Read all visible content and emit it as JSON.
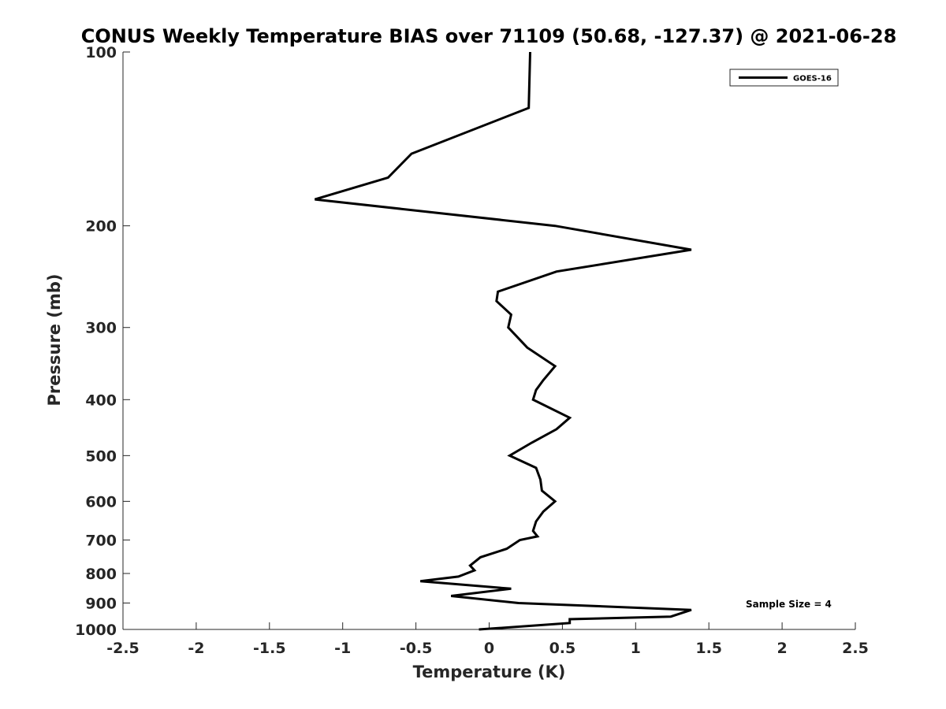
{
  "chart_data": {
    "type": "line",
    "title": "CONUS Weekly Temperature BIAS over 71109 (50.68, -127.37) @ 2021-06-28",
    "xlabel": "Temperature (K)",
    "ylabel": "Pressure (mb)",
    "xlim": [
      -2.5,
      2.5
    ],
    "ylim": [
      1000,
      100
    ],
    "y_scale": "log",
    "y_reversed": true,
    "grid": false,
    "legend_position": "top-right",
    "x_ticks": [
      -2.5,
      -2,
      -1.5,
      -1,
      -0.5,
      0,
      0.5,
      1,
      1.5,
      2,
      2.5
    ],
    "x_tick_labels": [
      "-2.5",
      "-2",
      "-1.5",
      "-1",
      "-0.5",
      "0",
      "0.5",
      "1",
      "1.5",
      "2",
      "2.5"
    ],
    "y_ticks": [
      100,
      200,
      300,
      400,
      500,
      600,
      700,
      800,
      900,
      1000
    ],
    "y_tick_labels": [
      "100",
      "200",
      "300",
      "400",
      "500",
      "600",
      "700",
      "800",
      "900",
      "1000"
    ],
    "series": [
      {
        "name": "GOES-16",
        "color": "#000000",
        "points": [
          {
            "x": 0.28,
            "y": 100
          },
          {
            "x": 0.27,
            "y": 125
          },
          {
            "x": -0.53,
            "y": 150
          },
          {
            "x": -0.69,
            "y": 165
          },
          {
            "x": -1.19,
            "y": 180
          },
          {
            "x": 0.45,
            "y": 200
          },
          {
            "x": 1.38,
            "y": 220
          },
          {
            "x": 0.46,
            "y": 240
          },
          {
            "x": 0.06,
            "y": 260
          },
          {
            "x": 0.05,
            "y": 270
          },
          {
            "x": 0.15,
            "y": 285
          },
          {
            "x": 0.13,
            "y": 300
          },
          {
            "x": 0.26,
            "y": 325
          },
          {
            "x": 0.45,
            "y": 350
          },
          {
            "x": 0.37,
            "y": 370
          },
          {
            "x": 0.32,
            "y": 385
          },
          {
            "x": 0.3,
            "y": 400
          },
          {
            "x": 0.55,
            "y": 430
          },
          {
            "x": 0.46,
            "y": 450
          },
          {
            "x": 0.29,
            "y": 475
          },
          {
            "x": 0.14,
            "y": 500
          },
          {
            "x": 0.32,
            "y": 525
          },
          {
            "x": 0.35,
            "y": 550
          },
          {
            "x": 0.36,
            "y": 575
          },
          {
            "x": 0.45,
            "y": 600
          },
          {
            "x": 0.37,
            "y": 625
          },
          {
            "x": 0.32,
            "y": 650
          },
          {
            "x": 0.3,
            "y": 675
          },
          {
            "x": 0.33,
            "y": 690
          },
          {
            "x": 0.21,
            "y": 700
          },
          {
            "x": 0.12,
            "y": 725
          },
          {
            "x": -0.06,
            "y": 750
          },
          {
            "x": -0.13,
            "y": 775
          },
          {
            "x": -0.1,
            "y": 790
          },
          {
            "x": -0.21,
            "y": 810
          },
          {
            "x": -0.47,
            "y": 825
          },
          {
            "x": 0.15,
            "y": 850
          },
          {
            "x": -0.26,
            "y": 875
          },
          {
            "x": 0.2,
            "y": 900
          },
          {
            "x": 1.38,
            "y": 925
          },
          {
            "x": 1.24,
            "y": 950
          },
          {
            "x": 0.55,
            "y": 960
          },
          {
            "x": 0.55,
            "y": 975
          },
          {
            "x": -0.07,
            "y": 1000
          }
        ]
      }
    ],
    "annotations": [
      {
        "text": "Sample Size = 4",
        "position": "bottom-right"
      }
    ]
  }
}
